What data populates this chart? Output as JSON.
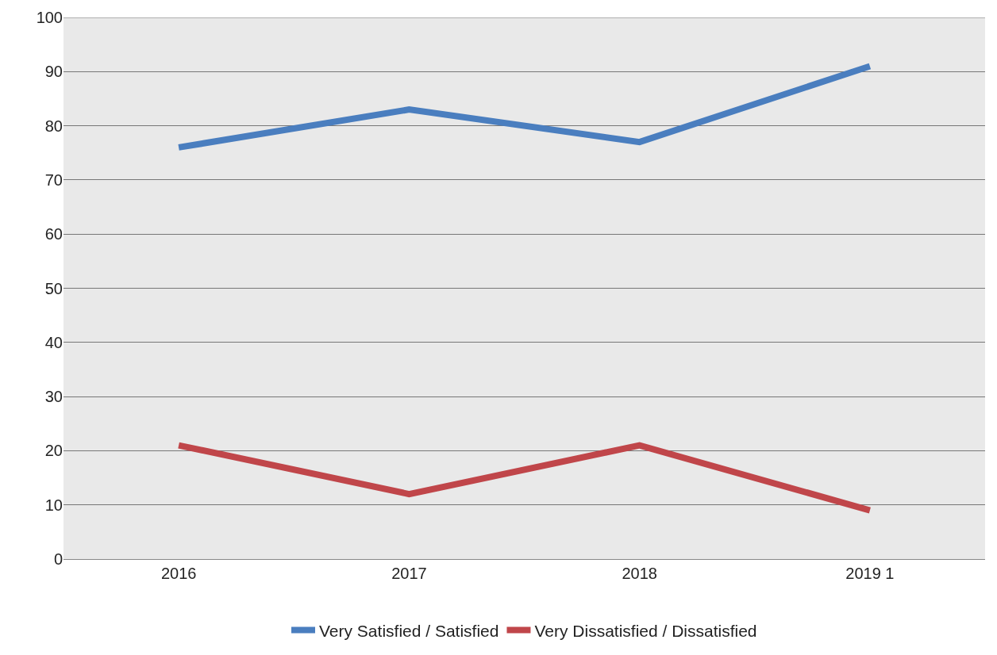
{
  "chart_data": {
    "type": "line",
    "categories": [
      "2016",
      "2017",
      "2018",
      "2019 1"
    ],
    "series": [
      {
        "name": "Very Satisfied / Satisfied",
        "color": "#4a7ebf",
        "values": [
          76,
          83,
          77,
          91
        ]
      },
      {
        "name": "Very Dissatisfied / Dissatisfied",
        "color": "#c0464a",
        "values": [
          21,
          12,
          21,
          9
        ]
      }
    ],
    "ylim": [
      0,
      100
    ],
    "yticks": [
      0,
      10,
      20,
      30,
      40,
      50,
      60,
      70,
      80,
      90,
      100
    ],
    "grid": "y",
    "legend": "bottom",
    "marker": "none",
    "line_style": "solid"
  }
}
